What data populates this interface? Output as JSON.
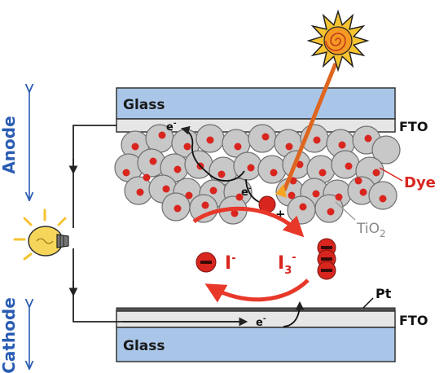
{
  "labels": {
    "glass_top": "Glass",
    "glass_bottom": "Glass",
    "fto_top": "FTO",
    "fto_bottom": "FTO",
    "anode": "Anode",
    "cathode": "Cathode",
    "dye": "Dye",
    "tio2_main": "TiO",
    "tio2_sub": "2",
    "pt": "Pt",
    "iodide_main": "I",
    "iodide_sup": "-",
    "triiodide_main": "I",
    "triiodide_sub": "3",
    "triiodide_sup": "-",
    "electron_top": "e",
    "electron_top_sup": "-",
    "electron_mid": "e",
    "electron_mid_sup": "-",
    "electron_bottom": "e",
    "electron_bottom_sup": "-",
    "plus": "+"
  },
  "colors": {
    "glass_fill": "#a9c6e8",
    "fto_fill": "#e6e6e6",
    "tio2_fill": "#c8c8c8",
    "dye_red": "#d8261f",
    "arrow_red": "#e8382a",
    "electrode_blue": "#2a5cb3",
    "wire": "#222222",
    "sun_yellow": "#f6c331",
    "bulb_yellow": "#f6c331"
  },
  "icons": {
    "sun": "sun-icon",
    "bulb": "light-bulb-icon"
  }
}
